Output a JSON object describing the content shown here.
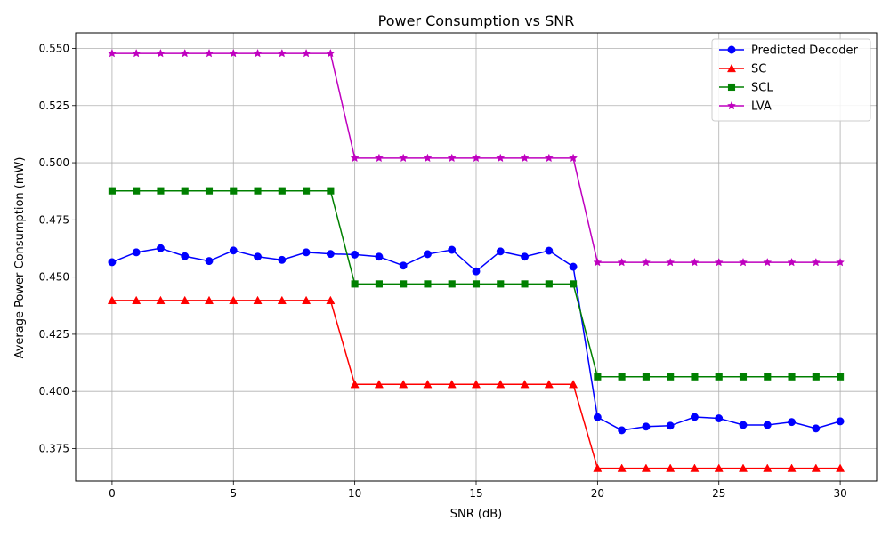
{
  "chart_data": {
    "type": "line",
    "title": "Power Consumption vs SNR",
    "xlabel": "SNR (dB)",
    "ylabel": "Average Power Consumption (mW)",
    "xlim": [
      -1.5,
      31.5
    ],
    "ylim": [
      0.3608,
      0.5568
    ],
    "xticks": [
      0,
      5,
      10,
      15,
      20,
      25,
      30
    ],
    "yticks": [
      0.375,
      0.4,
      0.425,
      0.45,
      0.475,
      0.5,
      0.525,
      0.55
    ],
    "ytick_labels": [
      "0.375",
      "0.400",
      "0.425",
      "0.450",
      "0.475",
      "0.500",
      "0.525",
      "0.550"
    ],
    "grid": true,
    "legend_position": "top-right",
    "x": [
      0,
      1,
      2,
      3,
      4,
      5,
      6,
      7,
      8,
      9,
      10,
      11,
      12,
      13,
      14,
      15,
      16,
      17,
      18,
      19,
      20,
      21,
      22,
      23,
      24,
      25,
      26,
      27,
      28,
      29,
      30
    ],
    "series": [
      {
        "name": "Predicted Decoder",
        "color": "#0000ff",
        "marker": "circle",
        "values": [
          0.4565,
          0.4608,
          0.4626,
          0.4591,
          0.457,
          0.4616,
          0.4589,
          0.4575,
          0.4608,
          0.4601,
          0.4598,
          0.4589,
          0.455,
          0.46,
          0.4619,
          0.4525,
          0.4612,
          0.4589,
          0.4615,
          0.4545,
          0.3887,
          0.383,
          0.3846,
          0.385,
          0.3888,
          0.3882,
          0.3853,
          0.3853,
          0.3866,
          0.3838,
          0.3869
        ]
      },
      {
        "name": "SC",
        "color": "#ff0000",
        "marker": "triangle",
        "values": [
          0.4398,
          0.4398,
          0.4398,
          0.4398,
          0.4398,
          0.4398,
          0.4398,
          0.4398,
          0.4398,
          0.4398,
          0.4031,
          0.4031,
          0.4031,
          0.4031,
          0.4031,
          0.4031,
          0.4031,
          0.4031,
          0.4031,
          0.4031,
          0.3664,
          0.3664,
          0.3664,
          0.3664,
          0.3664,
          0.3664,
          0.3664,
          0.3664,
          0.3664,
          0.3664,
          0.3664
        ]
      },
      {
        "name": "SCL",
        "color": "#008000",
        "marker": "square",
        "values": [
          0.4877,
          0.4877,
          0.4877,
          0.4877,
          0.4877,
          0.4877,
          0.4877,
          0.4877,
          0.4877,
          0.4877,
          0.447,
          0.447,
          0.447,
          0.447,
          0.447,
          0.447,
          0.447,
          0.447,
          0.447,
          0.447,
          0.4064,
          0.4064,
          0.4064,
          0.4064,
          0.4064,
          0.4064,
          0.4064,
          0.4064,
          0.4064,
          0.4064,
          0.4064
        ]
      },
      {
        "name": "LVA",
        "color": "#bf00bf",
        "marker": "star",
        "values": [
          0.5478,
          0.5478,
          0.5478,
          0.5478,
          0.5478,
          0.5478,
          0.5478,
          0.5478,
          0.5478,
          0.5478,
          0.502,
          0.502,
          0.502,
          0.502,
          0.502,
          0.502,
          0.502,
          0.502,
          0.502,
          0.502,
          0.4564,
          0.4564,
          0.4564,
          0.4564,
          0.4564,
          0.4564,
          0.4564,
          0.4564,
          0.4564,
          0.4564,
          0.4564
        ]
      }
    ]
  }
}
